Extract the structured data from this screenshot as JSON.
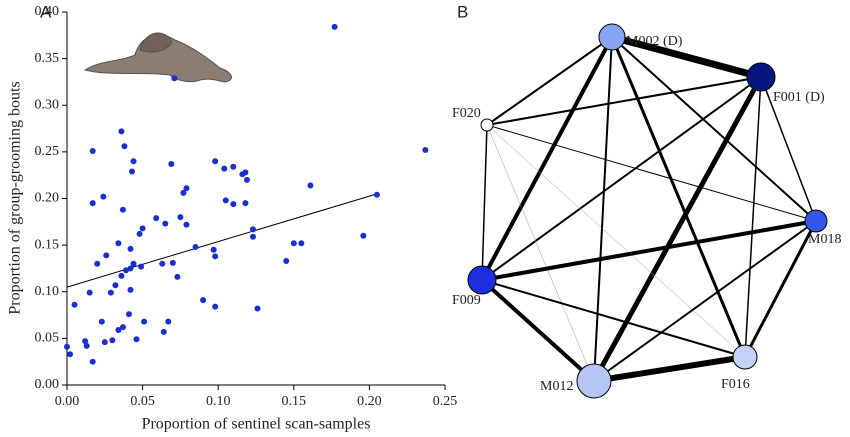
{
  "chart_data": {
    "type": "scatter",
    "panel_label": "A",
    "xlabel": "Proportion of sentinel scan-samples",
    "ylabel": "Proportion of group-grooming bouts",
    "color": "#1a2fd0",
    "xlim": [
      0,
      0.25
    ],
    "xticks": [
      {
        "value": 0,
        "label": "0.00"
      },
      0.05,
      {
        "value": 0.1,
        "label": "0.10"
      },
      0.15,
      {
        "value": 0.2,
        "label": "0.20"
      },
      0.25
    ],
    "ylim": [
      0,
      0.4
    ],
    "yticks": [
      {
        "value": 0,
        "label": "0.00"
      },
      0.05,
      {
        "value": 0.1,
        "label": "0.10"
      },
      0.15,
      {
        "value": 0.2,
        "label": "0.20"
      },
      0.25,
      {
        "value": 0.3,
        "label": "0.30"
      },
      0.35,
      {
        "value": 0.4,
        "label": "0.40"
      }
    ],
    "x": [
      0,
      0.002,
      0.005,
      0.012,
      0.013,
      0.015,
      0.017,
      0.017,
      0.017,
      0.02,
      0.023,
      0.024,
      0.025,
      0.026,
      0.029,
      0.03,
      0.032,
      0.034,
      0.034,
      0.036,
      0.036,
      0.037,
      0.037,
      0.038,
      0.039,
      0.041,
      0.042,
      0.042,
      0.042,
      0.044,
      0.043,
      0.044,
      0.046,
      0.048,
      0.049,
      0.051,
      0.05,
      0.059,
      0.063,
      0.064,
      0.065,
      0.067,
      0.069,
      0.07,
      0.071,
      0.073,
      0.075,
      0.077,
      0.079,
      0.079,
      0.085,
      0.09,
      0.097,
      0.098,
      0.098,
      0.098,
      0.104,
      0.105,
      0.11,
      0.11,
      0.116,
      0.118,
      0.119,
      0.118,
      0.123,
      0.123,
      0.126,
      0.145,
      0.15,
      0.155,
      0.161,
      0.177,
      0.196,
      0.205,
      0.237
    ],
    "y": [
      0.041,
      0.033,
      0.086,
      0.047,
      0.042,
      0.099,
      0.025,
      0.251,
      0.195,
      0.13,
      0.068,
      0.202,
      0.046,
      0.139,
      0.099,
      0.048,
      0.107,
      0.059,
      0.152,
      0.117,
      0.272,
      0.188,
      0.062,
      0.256,
      0.123,
      0.076,
      0.125,
      0.146,
      0.102,
      0.13,
      0.229,
      0.24,
      0.049,
      0.162,
      0.127,
      0.068,
      0.168,
      0.179,
      0.13,
      0.057,
      0.173,
      0.068,
      0.237,
      0.131,
      0.329,
      0.116,
      0.18,
      0.206,
      0.211,
      0.172,
      0.148,
      0.091,
      0.145,
      0.24,
      0.084,
      0.138,
      0.232,
      0.198,
      0.234,
      0.194,
      0.226,
      0.228,
      0.22,
      0.195,
      0.167,
      0.159,
      0.082,
      0.133,
      0.152,
      0.152,
      0.214,
      0.384,
      0.16,
      0.204,
      0.252
    ],
    "trend_line": {
      "x": [
        0,
        0.205
      ],
      "y": [
        0.105,
        0.205
      ]
    }
  },
  "network": {
    "panel_label": "B",
    "nodes": [
      {
        "label": "M002 (D)"
      },
      {
        "label": "F001 (D)"
      },
      {
        "label": "F020"
      },
      {
        "label": "M018"
      },
      {
        "label": "F009"
      },
      {
        "label": "M012"
      },
      {
        "label": "F016"
      }
    ]
  }
}
